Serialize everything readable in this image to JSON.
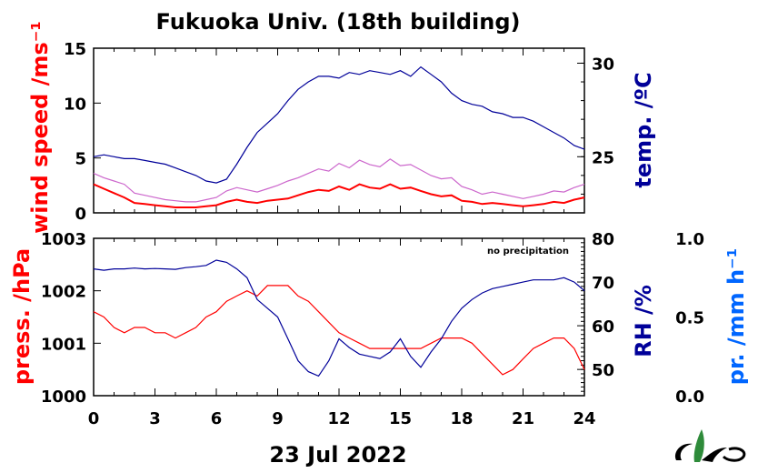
{
  "title": "Fukuoka Univ. (18th building)",
  "date_label": "23 Jul 2022",
  "note": "no precipitation",
  "colors": {
    "wind": "#ff0000",
    "gust": "#cc66cc",
    "temp": "#000099",
    "press": "#ff0000",
    "rh": "#000099",
    "precip": "#0066ff"
  },
  "logo": "mes-leaf-logo",
  "chart_data": [
    {
      "type": "line",
      "panel": "top",
      "xlim": [
        0,
        24
      ],
      "xticks": [
        "0",
        "3",
        "6",
        "9",
        "12",
        "15",
        "18",
        "21",
        "24"
      ],
      "y_left": {
        "label": "wind speed /ms⁻¹",
        "lim": [
          0,
          15
        ],
        "ticks": [
          "0",
          "5",
          "10",
          "15"
        ]
      },
      "y_right": {
        "label": "temp. /ºC",
        "lim": [
          22,
          30.8
        ],
        "ticks": [
          "25",
          "30"
        ]
      },
      "series": [
        {
          "axis": "left",
          "color": "#ff0000",
          "x": [
            0,
            0.5,
            1,
            1.5,
            2,
            2.5,
            3,
            3.5,
            4,
            4.5,
            5,
            5.5,
            6,
            6.5,
            7,
            7.5,
            8,
            8.5,
            9,
            9.5,
            10,
            10.5,
            11,
            11.5,
            12,
            12.5,
            13,
            13.5,
            14,
            14.5,
            15,
            15.5,
            16,
            16.5,
            17,
            17.5,
            18,
            18.5,
            19,
            19.5,
            20,
            20.5,
            21,
            21.5,
            22,
            22.5,
            23,
            23.5,
            24
          ],
          "y": [
            2.6,
            2.2,
            1.8,
            1.4,
            0.9,
            0.8,
            0.7,
            0.6,
            0.5,
            0.5,
            0.5,
            0.6,
            0.7,
            1.0,
            1.2,
            1.0,
            0.9,
            1.1,
            1.2,
            1.3,
            1.6,
            1.9,
            2.1,
            2.0,
            2.4,
            2.1,
            2.6,
            2.3,
            2.2,
            2.6,
            2.2,
            2.3,
            2.0,
            1.7,
            1.5,
            1.6,
            1.1,
            1.0,
            0.8,
            0.9,
            0.8,
            0.7,
            0.6,
            0.7,
            0.8,
            1.0,
            0.9,
            1.2,
            1.4
          ]
        },
        {
          "axis": "left",
          "color": "#cc66cc",
          "x": [
            0,
            0.5,
            1,
            1.5,
            2,
            2.5,
            3,
            3.5,
            4,
            4.5,
            5,
            5.5,
            6,
            6.5,
            7,
            7.5,
            8,
            8.5,
            9,
            9.5,
            10,
            10.5,
            11,
            11.5,
            12,
            12.5,
            13,
            13.5,
            14,
            14.5,
            15,
            15.5,
            16,
            16.5,
            17,
            17.5,
            18,
            18.5,
            19,
            19.5,
            20,
            20.5,
            21,
            21.5,
            22,
            22.5,
            23,
            23.5,
            24
          ],
          "y": [
            3.6,
            3.2,
            2.9,
            2.6,
            1.8,
            1.6,
            1.4,
            1.2,
            1.1,
            1.0,
            1.0,
            1.2,
            1.4,
            2.0,
            2.3,
            2.1,
            1.9,
            2.2,
            2.5,
            2.9,
            3.2,
            3.6,
            4.0,
            3.8,
            4.5,
            4.1,
            4.8,
            4.4,
            4.2,
            4.9,
            4.3,
            4.4,
            3.9,
            3.4,
            3.1,
            3.2,
            2.4,
            2.1,
            1.7,
            1.9,
            1.7,
            1.5,
            1.3,
            1.5,
            1.7,
            2.0,
            1.9,
            2.3,
            2.6
          ]
        },
        {
          "axis": "right",
          "color": "#000099",
          "x": [
            0,
            0.5,
            1,
            1.5,
            2,
            2.5,
            3,
            3.5,
            4,
            4.5,
            5,
            5.5,
            6,
            6.5,
            7,
            7.5,
            8,
            8.5,
            9,
            9.5,
            10,
            10.5,
            11,
            11.5,
            12,
            12.5,
            13,
            13.5,
            14,
            14.5,
            15,
            15.5,
            16,
            16.5,
            17,
            17.5,
            18,
            18.5,
            19,
            19.5,
            20,
            20.5,
            21,
            21.5,
            22,
            22.5,
            23,
            23.5,
            24
          ],
          "y": [
            25.0,
            25.1,
            25.0,
            24.9,
            24.9,
            24.8,
            24.7,
            24.6,
            24.4,
            24.2,
            24.0,
            23.7,
            23.6,
            23.8,
            24.6,
            25.5,
            26.3,
            26.8,
            27.3,
            28.0,
            28.6,
            29.0,
            29.3,
            29.3,
            29.2,
            29.5,
            29.4,
            29.6,
            29.5,
            29.4,
            29.6,
            29.3,
            29.8,
            29.4,
            29.0,
            28.4,
            28.0,
            27.8,
            27.7,
            27.4,
            27.3,
            27.1,
            27.1,
            26.9,
            26.6,
            26.3,
            26.0,
            25.6,
            25.4
          ]
        }
      ]
    },
    {
      "type": "line",
      "panel": "bottom",
      "xlim": [
        0,
        24
      ],
      "xticks": [
        "0",
        "3",
        "6",
        "9",
        "12",
        "15",
        "18",
        "21",
        "24"
      ],
      "y_left": {
        "label": "press. /hPa",
        "lim": [
          1000,
          1003
        ],
        "ticks": [
          "1000",
          "1001",
          "1002",
          "1003"
        ]
      },
      "y_right": {
        "label": "RH /%",
        "lim": [
          44,
          80
        ],
        "ticks": [
          "50",
          "60",
          "70",
          "80"
        ]
      },
      "y_right2": {
        "label": "pr. /mm h⁻¹",
        "lim": [
          0,
          1
        ],
        "ticks": [
          "0.0",
          "0.5",
          "1.0"
        ]
      },
      "series": [
        {
          "axis": "left",
          "color": "#ff0000",
          "x": [
            0,
            0.5,
            1,
            1.5,
            2,
            2.5,
            3,
            3.5,
            4,
            4.5,
            5,
            5.5,
            6,
            6.5,
            7,
            7.5,
            8,
            8.5,
            9,
            9.5,
            10,
            10.5,
            11,
            11.5,
            12,
            12.5,
            13,
            13.5,
            14,
            14.5,
            15,
            15.5,
            16,
            16.5,
            17,
            17.5,
            18,
            18.5,
            19,
            19.5,
            20,
            20.5,
            21,
            21.5,
            22,
            22.5,
            23,
            23.5,
            24
          ],
          "y": [
            1001.6,
            1001.5,
            1001.3,
            1001.2,
            1001.3,
            1001.3,
            1001.2,
            1001.2,
            1001.1,
            1001.2,
            1001.3,
            1001.5,
            1001.6,
            1001.8,
            1001.9,
            1002.0,
            1001.9,
            1002.1,
            1002.1,
            1002.1,
            1001.9,
            1001.8,
            1001.6,
            1001.4,
            1001.2,
            1001.1,
            1001.0,
            1000.9,
            1000.9,
            1000.9,
            1000.9,
            1000.9,
            1000.9,
            1001.0,
            1001.1,
            1001.1,
            1001.1,
            1001.0,
            1000.8,
            1000.6,
            1000.4,
            1000.5,
            1000.7,
            1000.9,
            1001.0,
            1001.1,
            1001.1,
            1000.9,
            1000.5
          ]
        },
        {
          "axis": "right",
          "color": "#000099",
          "x": [
            0,
            0.5,
            1,
            1.5,
            2,
            2.5,
            3,
            3.5,
            4,
            4.5,
            5,
            5.5,
            6,
            6.5,
            7,
            7.5,
            8,
            8.5,
            9,
            9.5,
            10,
            10.5,
            11,
            11.5,
            12,
            12.5,
            13,
            13.5,
            14,
            14.5,
            15,
            15.5,
            16,
            16.5,
            17,
            17.5,
            18,
            18.5,
            19,
            19.5,
            20,
            20.5,
            21,
            21.5,
            22,
            22.5,
            23,
            23.5,
            24
          ],
          "y": [
            73.0,
            72.7,
            73.0,
            73.0,
            73.2,
            73.0,
            73.1,
            73.0,
            72.9,
            73.3,
            73.5,
            73.8,
            75.0,
            74.5,
            73.0,
            71.0,
            66.0,
            64.0,
            62.0,
            57.0,
            52.0,
            49.5,
            48.5,
            52.0,
            57.0,
            55.0,
            53.5,
            53.0,
            52.5,
            54.0,
            57.0,
            53.0,
            50.5,
            54.0,
            57.0,
            61.0,
            64.0,
            66.0,
            67.5,
            68.5,
            69.0,
            69.5,
            70.0,
            70.5,
            70.5,
            70.5,
            71.0,
            70.0,
            68.0
          ]
        }
      ]
    }
  ]
}
